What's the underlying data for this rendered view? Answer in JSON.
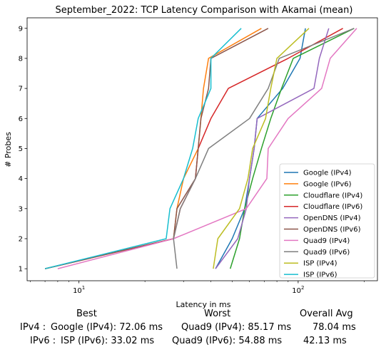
{
  "chart_data": {
    "type": "line",
    "title": "September_2022: TCP Latency Comparison with Akamai (mean)",
    "xlabel": "Latency in ms",
    "ylabel": "# Probes",
    "xscale": "log",
    "xlim": [
      5.8,
      230
    ],
    "ylim": [
      0.6,
      9.35
    ],
    "yticks": [
      1,
      2,
      3,
      4,
      5,
      6,
      7,
      8,
      9
    ],
    "xticks": [
      10,
      100
    ],
    "xtick_labels": [
      "10^1",
      "10^2"
    ],
    "grid": false,
    "legend_position": "lower right",
    "series": [
      {
        "name": "Google (IPv4)",
        "color": "#1f77b4",
        "points": [
          [
            42,
            1
          ],
          [
            50,
            2
          ],
          [
            57,
            3
          ],
          [
            60,
            4
          ],
          [
            63,
            5
          ],
          [
            65,
            6
          ],
          [
            85,
            7
          ],
          [
            102,
            8
          ],
          [
            108,
            9
          ]
        ]
      },
      {
        "name": "Google (IPv6)",
        "color": "#ff7f0e",
        "points": [
          [
            7,
            1
          ],
          [
            27,
            2
          ],
          [
            28,
            3
          ],
          [
            30,
            4
          ],
          [
            35,
            5
          ],
          [
            36,
            6
          ],
          [
            37,
            7
          ],
          [
            39,
            8
          ],
          [
            68,
            9
          ]
        ]
      },
      {
        "name": "Cloudflare (IPv4)",
        "color": "#2ca02c",
        "points": [
          [
            49,
            1
          ],
          [
            54,
            2
          ],
          [
            57,
            3
          ],
          [
            62,
            4
          ],
          [
            68,
            5
          ],
          [
            75,
            6
          ],
          [
            84,
            7
          ],
          [
            95,
            8
          ],
          [
            180,
            9
          ]
        ]
      },
      {
        "name": "Cloudflare (IPv6)",
        "color": "#d62728",
        "points": [
          [
            7,
            1
          ],
          [
            27,
            2
          ],
          [
            29,
            3
          ],
          [
            34,
            4
          ],
          [
            35,
            5
          ],
          [
            40,
            6
          ],
          [
            48,
            7
          ],
          [
            90,
            8
          ],
          [
            160,
            9
          ]
        ]
      },
      {
        "name": "OpenDNS (IPv4)",
        "color": "#9467bd",
        "points": [
          [
            42,
            1
          ],
          [
            53,
            2
          ],
          [
            58,
            3
          ],
          [
            60,
            4
          ],
          [
            63,
            5
          ],
          [
            65,
            6
          ],
          [
            118,
            7
          ],
          [
            125,
            8
          ],
          [
            138,
            9
          ]
        ]
      },
      {
        "name": "OpenDNS (IPv6)",
        "color": "#8c564b",
        "points": [
          [
            7,
            1
          ],
          [
            27,
            2
          ],
          [
            28,
            3
          ],
          [
            34,
            4
          ],
          [
            35,
            5
          ],
          [
            36,
            6
          ],
          [
            39,
            7
          ],
          [
            40,
            8
          ],
          [
            73,
            9
          ]
        ]
      },
      {
        "name": "Quad9 (IPv4)",
        "color": "#e377c2",
        "points": [
          [
            8,
            1
          ],
          [
            27,
            2
          ],
          [
            58,
            3
          ],
          [
            72,
            4
          ],
          [
            73,
            5
          ],
          [
            90,
            6
          ],
          [
            128,
            7
          ],
          [
            140,
            8
          ],
          [
            185,
            9
          ]
        ]
      },
      {
        "name": "Quad9 (IPv6)",
        "color": "#7f7f7f",
        "points": [
          [
            28,
            1
          ],
          [
            27,
            2
          ],
          [
            29,
            3
          ],
          [
            34,
            4
          ],
          [
            39,
            5
          ],
          [
            60,
            6
          ],
          [
            73,
            7
          ],
          [
            82,
            8
          ],
          [
            180,
            9
          ]
        ]
      },
      {
        "name": "ISP (IPv4)",
        "color": "#bcbd22",
        "points": [
          [
            41,
            1
          ],
          [
            43,
            2
          ],
          [
            54,
            3
          ],
          [
            59,
            4
          ],
          [
            62,
            5
          ],
          [
            71,
            6
          ],
          [
            75,
            7
          ],
          [
            80,
            8
          ],
          [
            112,
            9
          ]
        ]
      },
      {
        "name": "ISP (IPv6)",
        "color": "#17becf",
        "points": [
          [
            7,
            1
          ],
          [
            25,
            2
          ],
          [
            26,
            3
          ],
          [
            30,
            4
          ],
          [
            33,
            5
          ],
          [
            35,
            6
          ],
          [
            40,
            7
          ],
          [
            40,
            8
          ],
          [
            55,
            9
          ]
        ]
      }
    ]
  },
  "summary": {
    "headers": {
      "best": "Best",
      "worst": "Worst",
      "avg": "Overall Avg"
    },
    "rows": [
      {
        "label": "IPv4 :",
        "best": "Google (IPv4): 72.06 ms",
        "worst": "Quad9 (IPv4): 85.17 ms",
        "avg": "78.04 ms"
      },
      {
        "label": "IPv6 :",
        "best": "ISP (IPv6): 33.02 ms",
        "worst": "Quad9 (IPv6): 54.88 ms",
        "avg": "42.13 ms"
      }
    ]
  }
}
